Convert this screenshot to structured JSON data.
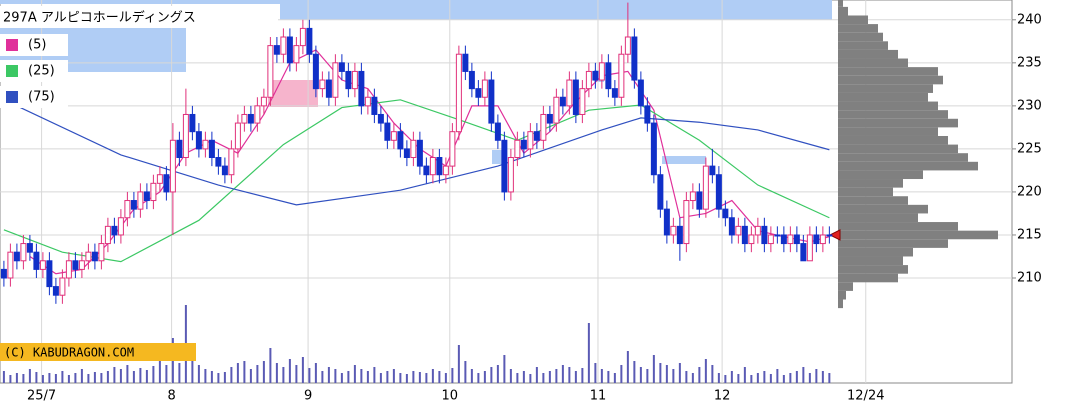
{
  "chart_data": {
    "type": "candlestick",
    "title": "297A アルピコホールディングス",
    "watermark": "(C) KABUDRAGON.COM",
    "xlim": [
      -0.6,
      155.1
    ],
    "xticks": [
      {
        "value": 5.8,
        "label": "25/7"
      },
      {
        "value": 25.8,
        "label": "8"
      },
      {
        "value": 46.8,
        "label": "9"
      },
      {
        "value": 68.6,
        "label": "10"
      },
      {
        "value": 91.4,
        "label": "11"
      },
      {
        "value": 110.5,
        "label": "12"
      },
      {
        "value": 132.6,
        "label": "12/24"
      }
    ],
    "ylim": [
      197.8,
      242.3
    ],
    "yticks": [
      210,
      215,
      220,
      225,
      230,
      235,
      240
    ],
    "grid": true,
    "up_color": "#e0307a",
    "down_color": "#1030c8",
    "candles": [
      [
        211,
        212,
        209,
        210
      ],
      [
        210,
        214,
        209,
        213
      ],
      [
        213,
        214,
        211,
        212
      ],
      [
        212,
        215,
        211,
        214
      ],
      [
        214,
        215,
        212,
        213
      ],
      [
        213,
        214,
        210,
        211
      ],
      [
        211,
        213,
        210,
        212
      ],
      [
        212,
        213,
        208,
        209
      ],
      [
        209,
        210,
        207,
        208
      ],
      [
        208,
        211,
        207,
        210
      ],
      [
        210,
        213,
        209,
        212
      ],
      [
        212,
        213,
        210,
        211
      ],
      [
        211,
        213,
        210,
        212
      ],
      [
        212,
        214,
        211,
        213
      ],
      [
        213,
        214,
        211,
        212
      ],
      [
        212,
        215,
        211,
        214
      ],
      [
        214,
        217,
        213,
        216
      ],
      [
        216,
        217,
        214,
        215
      ],
      [
        215,
        218,
        214,
        217
      ],
      [
        217,
        220,
        216,
        219
      ],
      [
        219,
        220,
        217,
        218
      ],
      [
        218,
        221,
        217,
        220
      ],
      [
        220,
        221,
        218,
        219
      ],
      [
        219,
        222,
        218,
        221
      ],
      [
        221,
        223,
        220,
        222
      ],
      [
        222,
        223,
        219,
        220
      ],
      [
        220,
        228,
        215,
        226
      ],
      [
        226,
        227,
        223,
        224
      ],
      [
        224,
        232,
        223,
        229
      ],
      [
        229,
        230,
        226,
        227
      ],
      [
        227,
        228,
        224,
        225
      ],
      [
        225,
        227,
        224,
        226
      ],
      [
        226,
        227,
        223,
        224
      ],
      [
        224,
        225,
        222,
        223
      ],
      [
        223,
        224,
        221,
        222
      ],
      [
        222,
        226,
        221,
        225
      ],
      [
        225,
        229,
        224,
        228
      ],
      [
        228,
        230,
        227,
        229
      ],
      [
        229,
        230,
        227,
        228
      ],
      [
        228,
        231,
        227,
        230
      ],
      [
        230,
        232,
        229,
        231
      ],
      [
        231,
        238,
        230,
        237
      ],
      [
        237,
        238,
        235,
        236
      ],
      [
        236,
        239,
        235,
        238
      ],
      [
        238,
        239,
        234,
        235
      ],
      [
        235,
        238,
        234,
        237
      ],
      [
        237,
        240,
        236,
        239
      ],
      [
        239,
        240,
        235,
        236
      ],
      [
        236,
        237,
        231,
        232
      ],
      [
        232,
        234,
        231,
        233
      ],
      [
        233,
        234,
        230,
        231
      ],
      [
        231,
        236,
        230,
        235
      ],
      [
        235,
        236,
        233,
        234
      ],
      [
        234,
        235,
        231,
        232
      ],
      [
        232,
        235,
        231,
        234
      ],
      [
        234,
        235,
        229,
        230
      ],
      [
        230,
        232,
        229,
        231
      ],
      [
        231,
        232,
        228,
        229
      ],
      [
        229,
        230,
        227,
        228
      ],
      [
        228,
        229,
        225,
        226
      ],
      [
        226,
        228,
        225,
        227
      ],
      [
        227,
        228,
        224,
        225
      ],
      [
        225,
        226,
        223,
        224
      ],
      [
        224,
        227,
        223,
        226
      ],
      [
        226,
        227,
        222,
        223
      ],
      [
        223,
        224,
        221,
        222
      ],
      [
        222,
        225,
        221,
        224
      ],
      [
        224,
        225,
        221,
        222
      ],
      [
        222,
        224,
        221,
        223
      ],
      [
        223,
        228,
        222,
        227
      ],
      [
        227,
        237,
        226,
        236
      ],
      [
        236,
        237,
        233,
        234
      ],
      [
        234,
        235,
        231,
        232
      ],
      [
        232,
        233,
        230,
        231
      ],
      [
        231,
        234,
        230,
        233
      ],
      [
        233,
        234,
        227,
        228
      ],
      [
        228,
        229,
        225,
        226
      ],
      [
        226,
        227,
        219,
        220
      ],
      [
        220,
        225,
        219,
        224
      ],
      [
        224,
        227,
        223,
        226
      ],
      [
        226,
        227,
        224,
        225
      ],
      [
        225,
        228,
        224,
        227
      ],
      [
        227,
        228,
        225,
        226
      ],
      [
        226,
        230,
        225,
        229
      ],
      [
        229,
        230,
        227,
        228
      ],
      [
        228,
        232,
        227,
        231
      ],
      [
        231,
        232,
        229,
        230
      ],
      [
        230,
        234,
        229,
        233
      ],
      [
        233,
        234,
        228,
        229
      ],
      [
        229,
        233,
        228,
        232
      ],
      [
        232,
        235,
        231,
        234
      ],
      [
        234,
        235,
        232,
        233
      ],
      [
        233,
        236,
        232,
        235
      ],
      [
        235,
        236,
        231,
        232
      ],
      [
        232,
        233,
        230,
        231
      ],
      [
        231,
        237,
        230,
        236
      ],
      [
        236,
        242,
        235,
        238
      ],
      [
        238,
        239,
        232,
        233
      ],
      [
        233,
        234,
        229,
        230
      ],
      [
        230,
        231,
        227,
        228
      ],
      [
        228,
        229,
        221,
        222
      ],
      [
        222,
        223,
        217,
        218
      ],
      [
        218,
        219,
        214,
        215
      ],
      [
        215,
        217,
        214,
        216
      ],
      [
        216,
        217,
        212,
        214
      ],
      [
        214,
        220,
        213,
        219
      ],
      [
        219,
        221,
        218,
        220
      ],
      [
        220,
        221,
        217,
        218
      ],
      [
        218,
        224,
        217,
        223
      ],
      [
        223,
        225,
        221,
        222
      ],
      [
        222,
        223,
        217,
        218
      ],
      [
        218,
        219,
        216,
        217
      ],
      [
        217,
        218,
        214,
        215
      ],
      [
        215,
        217,
        214,
        216
      ],
      [
        216,
        217,
        213,
        214
      ],
      [
        214,
        216,
        213,
        215
      ],
      [
        215,
        217,
        214,
        216
      ],
      [
        216,
        217,
        213,
        214
      ],
      [
        214,
        216,
        213,
        215
      ],
      [
        215,
        216,
        214,
        215
      ],
      [
        215,
        216,
        213,
        214
      ],
      [
        214,
        216,
        213,
        215
      ],
      [
        215,
        216,
        213,
        214
      ],
      [
        214,
        215,
        212,
        212
      ],
      [
        212,
        216,
        212,
        215
      ],
      [
        215,
        216,
        213,
        214
      ],
      [
        214,
        216,
        213,
        215
      ],
      [
        215,
        216,
        214,
        215
      ]
    ],
    "vlim": [
      0,
      100
    ],
    "volume_color": "#5a5ab4",
    "volume": [
      12,
      8,
      10,
      9,
      14,
      11,
      8,
      10,
      9,
      12,
      8,
      10,
      14,
      9,
      11,
      10,
      12,
      16,
      14,
      18,
      12,
      15,
      13,
      17,
      22,
      18,
      45,
      20,
      78,
      25,
      18,
      14,
      12,
      10,
      11,
      16,
      20,
      22,
      14,
      18,
      22,
      35,
      20,
      16,
      24,
      18,
      26,
      15,
      20,
      12,
      16,
      14,
      10,
      12,
      18,
      14,
      12,
      16,
      10,
      12,
      14,
      10,
      9,
      12,
      11,
      10,
      14,
      12,
      10,
      15,
      38,
      22,
      14,
      10,
      12,
      16,
      18,
      28,
      14,
      10,
      12,
      9,
      16,
      10,
      12,
      14,
      18,
      16,
      12,
      15,
      60,
      20,
      14,
      12,
      10,
      18,
      32,
      22,
      16,
      14,
      28,
      20,
      18,
      14,
      20,
      12,
      10,
      16,
      24,
      18,
      10,
      8,
      12,
      9,
      16,
      8,
      10,
      12,
      9,
      14,
      8,
      10,
      12,
      16,
      10,
      14,
      12,
      10
    ],
    "series": [
      {
        "name": "(5)",
        "color": "#e0309a",
        "x": [
          4,
          8,
          12,
          16,
          20,
          24,
          28,
          32,
          36,
          40,
          44,
          48,
          52,
          56,
          60,
          64,
          68,
          72,
          76,
          80,
          84,
          88,
          92,
          96,
          100,
          104,
          108,
          112,
          116,
          120,
          124,
          127
        ],
        "values": [
          212.5,
          210.5,
          211,
          214,
          218,
          220,
          224.5,
          226,
          224.5,
          229,
          235,
          236.5,
          233,
          232,
          228,
          225,
          223,
          230,
          230,
          224.5,
          227,
          230.5,
          233.5,
          234,
          229.5,
          217,
          217.5,
          219,
          215.5,
          214.8,
          214.2,
          214.8
        ]
      },
      {
        "name": "(25)",
        "color": "#3cc864",
        "x": [
          0,
          9,
          18,
          30,
          43,
          52,
          61,
          70,
          79,
          90,
          98,
          107,
          116,
          127
        ],
        "values": [
          215.6,
          213,
          211.9,
          216.7,
          225.5,
          229.8,
          230.7,
          228.4,
          226,
          229.5,
          230.1,
          226,
          220.8,
          217
        ]
      },
      {
        "name": "(75)",
        "color": "#3050c0",
        "x": [
          0,
          18,
          33,
          45,
          61,
          76,
          92,
          98,
          107,
          116,
          127
        ],
        "values": [
          230.7,
          224.3,
          220.8,
          218.5,
          220.2,
          223,
          227.2,
          228.6,
          228.1,
          227.2,
          224.9
        ]
      }
    ],
    "profile": {
      "color": "#808080",
      "levels": [
        207,
        208,
        209,
        210,
        211,
        212,
        213,
        214,
        215,
        216,
        217,
        218,
        219,
        220,
        221,
        222,
        223,
        224,
        225,
        226,
        227,
        228,
        229,
        230,
        231,
        232,
        233,
        234,
        235,
        236,
        237,
        238,
        239,
        240,
        241,
        242
      ],
      "values": [
        5,
        8,
        15,
        60,
        70,
        65,
        75,
        110,
        160,
        120,
        80,
        90,
        70,
        55,
        65,
        85,
        140,
        130,
        120,
        110,
        100,
        120,
        110,
        100,
        90,
        95,
        105,
        100,
        70,
        60,
        50,
        45,
        40,
        30,
        10,
        5
      ]
    },
    "last_price": 215
  }
}
